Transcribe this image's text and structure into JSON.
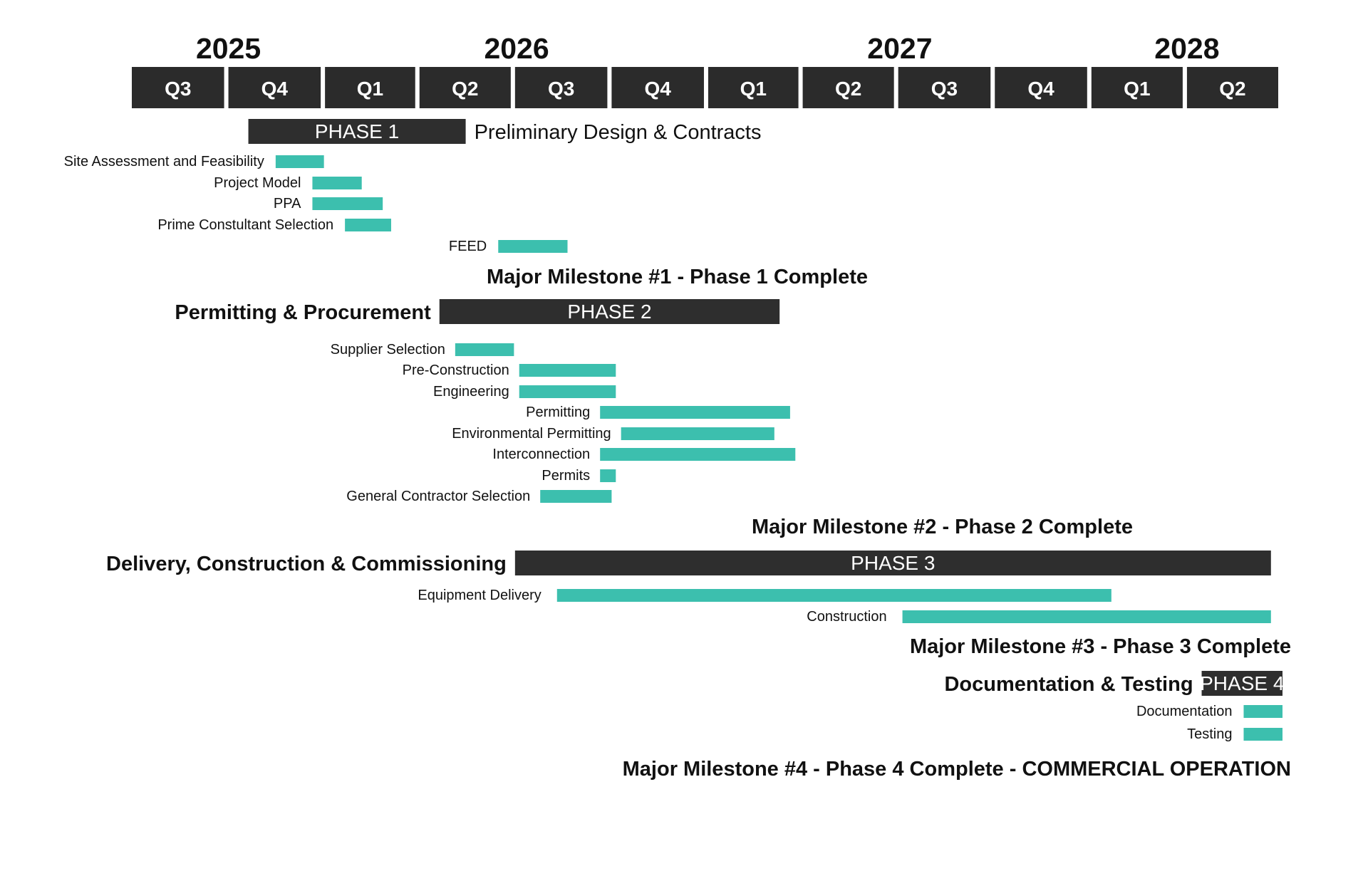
{
  "chart_data": {
    "type": "gantt",
    "colors": {
      "header": "#2b2b2b",
      "phase_bar": "#2e2e2e",
      "task_bar": "#3cbfae",
      "text": "#111111"
    },
    "years": [
      {
        "label": "2025",
        "start": "2025-07-01",
        "end": "2026-01-01"
      },
      {
        "label": "2026",
        "start": "2026-01-01",
        "end": "2027-01-01"
      },
      {
        "label": "2027",
        "start": "2027-01-01",
        "end": "2028-01-01"
      },
      {
        "label": "2028",
        "start": "2028-01-01",
        "end": "2028-07-01"
      }
    ],
    "quarters": [
      {
        "label": "Q3",
        "start": "2025-07-01",
        "end": "2025-10-01"
      },
      {
        "label": "Q4",
        "start": "2025-10-01",
        "end": "2026-01-01"
      },
      {
        "label": "Q1",
        "start": "2026-01-01",
        "end": "2026-04-01"
      },
      {
        "label": "Q2",
        "start": "2026-04-01",
        "end": "2026-07-01"
      },
      {
        "label": "Q3",
        "start": "2026-07-01",
        "end": "2026-10-01"
      },
      {
        "label": "Q4",
        "start": "2026-10-01",
        "end": "2027-01-01"
      },
      {
        "label": "Q1",
        "start": "2027-01-01",
        "end": "2027-04-01"
      },
      {
        "label": "Q2",
        "start": "2027-04-01",
        "end": "2027-07-01"
      },
      {
        "label": "Q3",
        "start": "2027-07-01",
        "end": "2027-10-01"
      },
      {
        "label": "Q4",
        "start": "2027-10-01",
        "end": "2028-01-01"
      },
      {
        "label": "Q1",
        "start": "2028-01-01",
        "end": "2028-04-01"
      },
      {
        "label": "Q2",
        "start": "2028-04-01",
        "end": "2028-07-01"
      }
    ],
    "phases": [
      {
        "label": "PHASE 1",
        "name": "Preliminary Design & Contracts",
        "name_side": "right",
        "start": "2025-10-20",
        "end": "2026-05-15",
        "tasks": [
          {
            "name": "Site Assessment and Feasibility",
            "start": "2025-11-15",
            "end": "2025-12-31"
          },
          {
            "name": "Project Model",
            "start": "2025-12-20",
            "end": "2026-02-05"
          },
          {
            "name": "PPA",
            "start": "2025-12-20",
            "end": "2026-02-25"
          },
          {
            "name": "Prime Constultant Selection",
            "start": "2026-01-20",
            "end": "2026-03-05"
          },
          {
            "name": "FEED",
            "start": "2026-06-15",
            "end": "2026-08-20"
          }
        ],
        "milestone": "Major Milestone #1 - Phase 1 Complete"
      },
      {
        "label": "PHASE 2",
        "name": "Permitting & Procurement",
        "name_side": "left",
        "start": "2026-04-20",
        "end": "2027-03-10",
        "tasks": [
          {
            "name": "Supplier Selection",
            "start": "2026-05-05",
            "end": "2026-06-30"
          },
          {
            "name": "Pre-Construction",
            "start": "2026-07-05",
            "end": "2026-10-05"
          },
          {
            "name": "Engineering",
            "start": "2026-07-05",
            "end": "2026-10-05"
          },
          {
            "name": "Permitting",
            "start": "2026-09-20",
            "end": "2027-03-20"
          },
          {
            "name": "Environmental Permitting",
            "start": "2026-10-10",
            "end": "2027-03-05"
          },
          {
            "name": "Interconnection",
            "start": "2026-09-20",
            "end": "2027-03-25"
          },
          {
            "name": "Permits",
            "start": "2026-09-20",
            "end": "2026-10-05"
          },
          {
            "name": "General Contractor Selection",
            "start": "2026-07-25",
            "end": "2026-10-01"
          }
        ],
        "milestone": "Major Milestone #2 - Phase 2 Complete"
      },
      {
        "label": "PHASE 3",
        "name": "Delivery, Construction & Commissioning",
        "name_side": "left",
        "start": "2026-07-01",
        "end": "2028-06-20",
        "tasks": [
          {
            "name": "Equipment Delivery",
            "start": "2026-08-10",
            "end": "2028-01-20"
          },
          {
            "name": "Construction",
            "start": "2027-07-05",
            "end": "2028-06-20"
          }
        ],
        "milestone": "Major Milestone #3 - Phase 3 Complete"
      },
      {
        "label": "PHASE 4",
        "name": "Documentation & Testing",
        "name_side": "left",
        "start": "2028-04-15",
        "end": "2028-07-01",
        "tasks": [
          {
            "name": "Documentation",
            "start": "2028-05-25",
            "end": "2028-07-01"
          },
          {
            "name": "Testing",
            "start": "2028-05-25",
            "end": "2028-07-01"
          }
        ],
        "milestone": "Major Milestone #4 - Phase 4 Complete - COMMERCIAL OPERATION"
      }
    ]
  }
}
